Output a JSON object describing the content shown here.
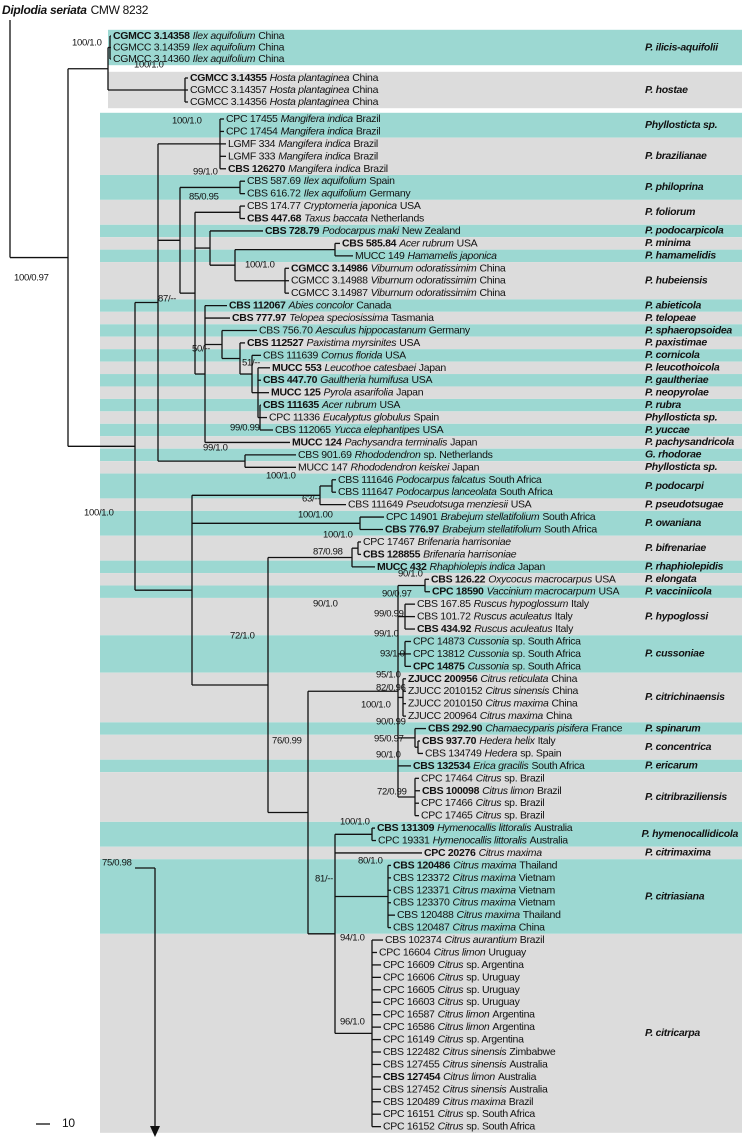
{
  "outgroup": {
    "name": "Diplodia seriata",
    "strain": "CMW 8232"
  },
  "scale_bar": 10,
  "leaves": [
    {
      "strain": "CGMCC 3.14358",
      "host": "Ilex aquifolium",
      "origin": "China",
      "bold": true
    },
    {
      "strain": "CGMCC 3.14359",
      "host": "Ilex aquifolium",
      "origin": "China"
    },
    {
      "strain": "CGMCC 3.14360",
      "host": "Ilex aquifolium",
      "origin": "China"
    },
    {
      "strain": "CGMCC 3.14355",
      "host": "Hosta plantaginea",
      "origin": "China",
      "bold": true
    },
    {
      "strain": "CGMCC 3.14357",
      "host": "Hosta plantaginea",
      "origin": "China"
    },
    {
      "strain": "CGMCC 3.14356",
      "host": "Hosta plantaginea",
      "origin": "China"
    },
    {
      "strain": "CPC 17455",
      "host": "Mangifera indica",
      "origin": "Brazil"
    },
    {
      "strain": "CPC 17454",
      "host": "Mangifera indica",
      "origin": "Brazil"
    },
    {
      "strain": "LGMF 334",
      "host": "Mangifera indica",
      "origin": "Brazil"
    },
    {
      "strain": "LGMF 333",
      "host": "Mangifera indica",
      "origin": "Brazil"
    },
    {
      "strain": "CBS 126270",
      "host": "Mangifera indica",
      "origin": "Brazil",
      "bold": true
    },
    {
      "strain": "CBS 587.69",
      "host": "Ilex aquifolium",
      "origin": "Spain"
    },
    {
      "strain": "CBS 616.72",
      "host": "Ilex aquifolium",
      "origin": "Germany"
    },
    {
      "strain": "CBS 174.77",
      "host": "Cryptomeria japonica",
      "origin": "USA"
    },
    {
      "strain": "CBS 447.68",
      "host": "Taxus baccata",
      "origin": "Netherlands",
      "bold": true
    },
    {
      "strain": "CBS 728.79",
      "host": "Podocarpus maki",
      "origin": "New Zealand",
      "bold": true
    },
    {
      "strain": "CBS 585.84",
      "host": "Acer rubrum",
      "origin": "USA",
      "bold": true
    },
    {
      "strain": "MUCC 149",
      "host": "Hamamelis japonica"
    },
    {
      "strain": "CGMCC 3.14986",
      "host": "Viburnum odoratissimim",
      "origin": "China",
      "bold": true
    },
    {
      "strain": "CGMCC 3.14988",
      "host": "Viburnum odoratissimim",
      "origin": "China"
    },
    {
      "strain": "CGMCC 3.14987",
      "host": "Viburnum odoratissimim",
      "origin": "China"
    },
    {
      "strain": "CBS 112067",
      "host": "Abies concolor",
      "origin": "Canada",
      "bold": true
    },
    {
      "strain": "CBS 777.97",
      "host": "Telopea speciosissima",
      "origin": "Tasmania",
      "bold": true
    },
    {
      "strain": "CBS 756.70",
      "host": "Aesculus hippocastanum",
      "origin": "Germany"
    },
    {
      "strain": "CBS 112527",
      "host": "Paxistima myrsinites",
      "origin": "USA",
      "bold": true
    },
    {
      "strain": "CBS 111639",
      "host": "Cornus florida",
      "origin": "USA"
    },
    {
      "strain": "MUCC 553",
      "host": "Leucothoe catesbaei",
      "origin": "Japan",
      "bold": true
    },
    {
      "strain": "CBS 447.70",
      "host": "Gaultheria humifusa",
      "origin": "USA",
      "bold": true
    },
    {
      "strain": "MUCC 125",
      "host": "Pyrola asarifolia",
      "origin": "Japan",
      "bold": true
    },
    {
      "strain": "CBS 111635",
      "host": "Acer rubrum",
      "origin": "USA",
      "bold": true
    },
    {
      "strain": "CPC 11336",
      "host": "Eucalyptus globulus",
      "origin": "Spain"
    },
    {
      "strain": "CBS 112065",
      "host": "Yucca elephantipes",
      "origin": "USA"
    },
    {
      "strain": "MUCC 124",
      "host": "Pachysandra terminalis",
      "origin": "Japan",
      "bold": true
    },
    {
      "strain": "CBS 901.69",
      "host": "Rhododendron",
      "origin": "sp. Netherlands"
    },
    {
      "strain": "MUCC 147",
      "host": "Rhododendron keiskei",
      "origin": "Japan"
    },
    {
      "strain": "CBS 111646",
      "host": "Podocarpus falcatus",
      "origin": "South Africa"
    },
    {
      "strain": "CBS 111647",
      "host": "Podocarpus lanceolata",
      "origin": "South Africa"
    },
    {
      "strain": "CBS 111649",
      "host": "Pseudotsuga menziesii",
      "origin": "USA"
    },
    {
      "strain": "CPC 14901",
      "host": "Brabejum stellatifolium",
      "origin": "South Africa"
    },
    {
      "strain": "CBS 776.97",
      "host": "Brabejum stellatifolium",
      "origin": "South Africa",
      "bold": true
    },
    {
      "strain": "CPC 17467",
      "host": "Brifenaria harrisoniae"
    },
    {
      "strain": "CBS 128855",
      "host": "Brifenaria harrisoniae",
      "bold": true
    },
    {
      "strain": "MUCC 432",
      "host": "Rhaphiolepis indica",
      "origin": "Japan",
      "bold": true
    },
    {
      "strain": "CBS 126.22",
      "host": "Oxycocus macrocarpus",
      "origin": "USA",
      "bold": true
    },
    {
      "strain": "CPC 18590",
      "host": "Vaccinium macrocarpum",
      "origin": "USA",
      "bold": true
    },
    {
      "strain": "CBS 167.85",
      "host": "Ruscus hypoglossum",
      "origin": "Italy"
    },
    {
      "strain": "CBS 101.72",
      "host": "Ruscus aculeatus",
      "origin": "Italy"
    },
    {
      "strain": "CBS 434.92",
      "host": "Ruscus aculeatus",
      "origin": "Italy",
      "bold": true
    },
    {
      "strain": "CPC 14873",
      "host": "Cussonia",
      "origin": "sp. South Africa"
    },
    {
      "strain": "CPC 13812",
      "host": "Cussonia",
      "origin": "sp. South Africa"
    },
    {
      "strain": "CPC 14875",
      "host": "Cussonia",
      "origin": "sp. South Africa",
      "bold": true
    },
    {
      "strain": "ZJUCC 200956",
      "host": "Citrus reticulata",
      "origin": "China",
      "bold": true
    },
    {
      "strain": "ZJUCC 2010152",
      "host": "Citrus sinensis",
      "origin": "China"
    },
    {
      "strain": "ZJUCC 2010150",
      "host": "Citrus maxima",
      "origin": "China"
    },
    {
      "strain": "ZJUCC 200964",
      "host": "Citrus maxima",
      "origin": "China"
    },
    {
      "strain": "CBS 292.90",
      "host": "Chamaecyparis pisifera",
      "origin": "France",
      "bold": true
    },
    {
      "strain": "CBS 937.70",
      "host": "Hedera helix",
      "origin": "Italy",
      "bold": true
    },
    {
      "strain": "CBS 134749",
      "host": "Hedera",
      "origin": "sp. Spain"
    },
    {
      "strain": "CBS 132534",
      "host": "Erica gracilis",
      "origin": "South Africa",
      "bold": true
    },
    {
      "strain": "CPC 17464",
      "host": "Citrus",
      "origin": "sp. Brazil"
    },
    {
      "strain": "CBS 100098",
      "host": "Citrus limon",
      "origin": "Brazil",
      "bold": true
    },
    {
      "strain": "CPC 17466",
      "host": "Citrus",
      "origin": "sp. Brazil"
    },
    {
      "strain": "CPC 17465",
      "host": "Citrus",
      "origin": "sp. Brazil"
    },
    {
      "strain": "CBS 131309",
      "host": "Hymenocallis littoralis",
      "origin": "Australia",
      "bold": true
    },
    {
      "strain": "CPC 19331",
      "host": "Hymenocallis littoralis",
      "origin": "Australia"
    },
    {
      "strain": "CPC 20276",
      "host": "Citrus maxima",
      "bold": true
    },
    {
      "strain": "CBS 120486",
      "host": "Citrus maxima",
      "origin": "Thailand",
      "bold": true
    },
    {
      "strain": "CBS 123372",
      "host": "Citrus maxima",
      "origin": "Vietnam"
    },
    {
      "strain": "CBS 123371",
      "host": "Citrus maxima",
      "origin": "Vietnam"
    },
    {
      "strain": "CBS 123370",
      "host": "Citrus maxima",
      "origin": "Vietnam"
    },
    {
      "strain": "CBS 120488",
      "host": "Citrus maxima",
      "origin": "Thailand"
    },
    {
      "strain": "CBS 120487",
      "host": "Citrus maxima",
      "origin": "China"
    },
    {
      "strain": "CBS 102374",
      "host": "Citrus aurantium",
      "origin": "Brazil"
    },
    {
      "strain": "CPC 16604",
      "host": "Citrus limon",
      "origin": "Uruguay"
    },
    {
      "strain": "CPC 16609",
      "host": "Citrus",
      "origin": "sp. Argentina"
    },
    {
      "strain": "CPC 16606",
      "host": "Citrus",
      "origin": "sp. Uruguay"
    },
    {
      "strain": "CPC 16605",
      "host": "Citrus",
      "origin": "sp. Uruguay"
    },
    {
      "strain": "CPC 16603",
      "host": "Citrus",
      "origin": "sp. Uruguay"
    },
    {
      "strain": "CPC 16587",
      "host": "Citrus limon",
      "origin": "Argentina"
    },
    {
      "strain": "CPC 16586",
      "host": "Citrus limon",
      "origin": "Argentina"
    },
    {
      "strain": "CPC 16149",
      "host": "Citrus",
      "origin": "sp. Argentina"
    },
    {
      "strain": "CBS 122482",
      "host": "Citrus sinensis",
      "origin": "Zimbabwe"
    },
    {
      "strain": "CBS 127455",
      "host": "Citrus sinensis",
      "origin": "Australia"
    },
    {
      "strain": "CBS 127454",
      "host": "Citrus limon",
      "origin": "Australia",
      "bold": true
    },
    {
      "strain": "CBS 127452",
      "host": "Citrus sinensis",
      "origin": "Australia"
    },
    {
      "strain": "CBS 120489",
      "host": "Citrus maxima",
      "origin": "Brazil"
    },
    {
      "strain": "CPC 16151",
      "host": "Citrus",
      "origin": "sp. South Africa"
    },
    {
      "strain": "CPC 16152",
      "host": "Citrus",
      "origin": "sp. South Africa"
    }
  ],
  "clades": [
    "P. ilicis-aquifolii",
    "P. hostae",
    "Phyllosticta sp.",
    "P. brazilianae",
    "P. philoprina",
    "P. foliorum",
    "P. podocarpicola",
    "P. minima",
    "P. hamamelidis",
    "P. hubeiensis",
    "P. abieticola",
    "P. telopeae",
    "P. sphaeropsoidea",
    "P. paxistimae",
    "P. cornicola",
    "P. leucothoicola",
    "P. gaultheriae",
    "P. neopyrolae",
    "P. rubra",
    "Phyllosticta sp.",
    "P. yuccae",
    "P. pachysandricola",
    "G. rhodorae",
    "Phyllosticta sp.",
    "P. podocarpi",
    "P. pseudotsugae",
    "P. owaniana",
    "P. bifrenariae",
    "P. rhaphiolepidis",
    "P. elongata",
    "P. vacciniicola",
    "P. hypoglossi",
    "P. cussoniae",
    "P. citrichinaensis",
    "P. spinarum",
    "P. concentrica",
    "P. ericarum",
    "P. citribraziliensis",
    "P. hymenocallidicola",
    "P. citrimaxima",
    "P. citriasiana",
    "P. citricarpa"
  ],
  "supports": [
    "100/0.97",
    "100/1.0",
    "100/1.0",
    "100/1.0",
    "99/1.0",
    "85/0.95",
    "100/1.0",
    "87/--",
    "50/--",
    "51/--",
    "99/0.99",
    "99/1.0",
    "100/1.0",
    "63/--",
    "100/1.0",
    "100/1.00",
    "100/1.0",
    "87/0.98",
    "90/1.0",
    "90/0.97",
    "99/0.99",
    "90/1.0",
    "99/1.0",
    "72/1.0",
    "93/1.0",
    "95/1.0",
    "82/0.96",
    "100/1.0",
    "90/0.99",
    "76/0.99",
    "95/0.97",
    "90/1.0",
    "72/0.99",
    "100/1.0",
    "75/0.98",
    "80/1.0",
    "81/--",
    "94/1.0",
    "96/1.0"
  ]
}
